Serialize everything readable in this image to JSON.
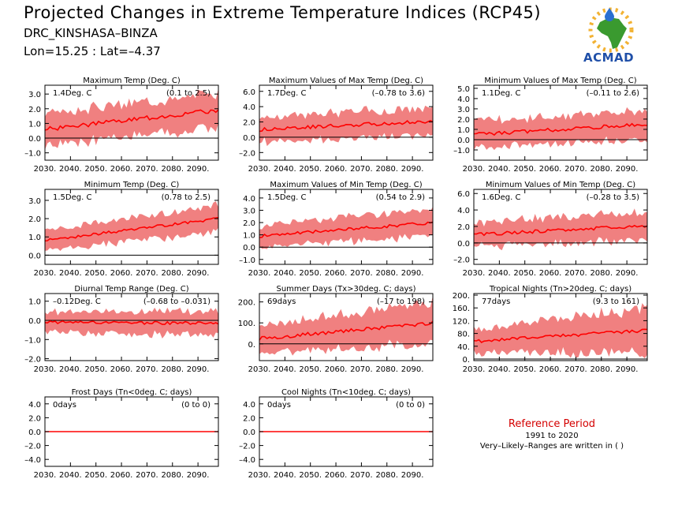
{
  "header": {
    "title": "Projected Changes in Extreme Temperature Indices (RCP45)",
    "station": "DRC_KINSHASA–BINZA",
    "coords": "Lon=15.25 : Lat=–4.37"
  },
  "logo": {
    "text": "ACMAD"
  },
  "reference": {
    "title": "Reference Period",
    "years": "1991 to 2020",
    "note": "Very–Likely–Ranges are written in ( )"
  },
  "colors": {
    "band": "#f08080",
    "line": "#ff0000",
    "zero": "#000000"
  },
  "chart_data": [
    {
      "type": "area",
      "title": "Maximum Temp (Deg. C)",
      "mean_label": "1.4Deg. C",
      "range_label": "(0.1 to 2.5)",
      "x": [
        2030,
        2098
      ],
      "xticks": [
        "2030.",
        "2040.",
        "2050.",
        "2060.",
        "2070.",
        "2080.",
        "2090."
      ],
      "yticks": [
        "3.0",
        "2.0",
        "1.0",
        "0.0",
        "–1.0"
      ],
      "ylim": [
        -1.5,
        3.6
      ],
      "mean": [
        0.6,
        1.9
      ],
      "spread": [
        1.2,
        1.3
      ]
    },
    {
      "type": "area",
      "title": "Maximum Values of Max Temp (Deg. C)",
      "mean_label": "1.7Deg. C",
      "range_label": "(–0.78 to 3.6)",
      "x": [
        2030,
        2098
      ],
      "xticks": [
        "2030.",
        "2040.",
        "2050.",
        "2060.",
        "2070.",
        "2080.",
        "2090."
      ],
      "yticks": [
        "6.0",
        "4.0",
        "2.0",
        "0.0",
        "–2.0"
      ],
      "ylim": [
        -3.0,
        6.8
      ],
      "mean": [
        1.0,
        2.1
      ],
      "spread": [
        1.8,
        2.0
      ]
    },
    {
      "type": "area",
      "title": "Minimum Values of Max Temp (Deg. C)",
      "mean_label": "1.1Deg. C",
      "range_label": "(–0.11 to 2.6)",
      "x": [
        2030,
        2098
      ],
      "xticks": [
        "2030.",
        "2040.",
        "2050.",
        "2060.",
        "2070.",
        "2080.",
        "2090."
      ],
      "yticks": [
        "5.0",
        "4.0",
        "3.0",
        "2.0",
        "1.0",
        "0.0",
        "–1.0"
      ],
      "ylim": [
        -2.0,
        5.3
      ],
      "mean": [
        0.5,
        1.5
      ],
      "spread": [
        1.4,
        1.6
      ]
    },
    {
      "type": "area",
      "title": "Minimum Temp (Deg. C)",
      "mean_label": "1.5Deg. C",
      "range_label": "(0.78 to 2.5)",
      "x": [
        2030,
        2098
      ],
      "xticks": [
        "2030.",
        "2040.",
        "2050.",
        "2060.",
        "2070.",
        "2080.",
        "2090."
      ],
      "yticks": [
        "3.0",
        "2.0",
        "1.0",
        "0.0"
      ],
      "ylim": [
        -0.5,
        3.6
      ],
      "mean": [
        0.8,
        2.0
      ],
      "spread": [
        0.6,
        0.8
      ]
    },
    {
      "type": "area",
      "title": "Maximum Values of Min Temp (Deg. C)",
      "mean_label": "1.5Deg. C",
      "range_label": "(0.54 to 2.9)",
      "x": [
        2030,
        2098
      ],
      "xticks": [
        "2030.",
        "2040.",
        "2050.",
        "2060.",
        "2070.",
        "2080.",
        "2090."
      ],
      "yticks": [
        "4.0",
        "3.0",
        "2.0",
        "1.0",
        "0.0",
        "–1.0"
      ],
      "ylim": [
        -1.4,
        4.7
      ],
      "mean": [
        0.9,
        2.0
      ],
      "spread": [
        1.0,
        1.2
      ]
    },
    {
      "type": "area",
      "title": "Minimum Values of Min Temp (Deg. C)",
      "mean_label": "1.6Deg. C",
      "range_label": "(–0.28 to 3.5)",
      "x": [
        2030,
        2098
      ],
      "xticks": [
        "2030.",
        "2040.",
        "2050.",
        "2060.",
        "2070.",
        "2080.",
        "2090."
      ],
      "yticks": [
        "6.0",
        "4.0",
        "2.0",
        "0.0",
        "–2.0"
      ],
      "ylim": [
        -2.6,
        6.5
      ],
      "mean": [
        1.0,
        2.1
      ],
      "spread": [
        1.6,
        1.9
      ]
    },
    {
      "type": "area",
      "title": "Diurnal Temp Range (Deg. C)",
      "mean_label": "–0.12Deg. C",
      "range_label": "(–0.68 to –0.031)",
      "x": [
        2030,
        2098
      ],
      "xticks": [
        "2030.",
        "2040.",
        "2050.",
        "2060.",
        "2070.",
        "2080.",
        "2090."
      ],
      "yticks": [
        "1.0",
        "0.0",
        "–1.0",
        "–2.0"
      ],
      "ylim": [
        -2.1,
        1.4
      ],
      "mean": [
        -0.1,
        -0.15
      ],
      "spread": [
        0.6,
        0.7
      ]
    },
    {
      "type": "area",
      "title": "Summer Days (Tx>30deg. C; days)",
      "mean_label": "69days",
      "range_label": "(–17 to 198)",
      "x": [
        2030,
        2098
      ],
      "xticks": [
        "2030.",
        "2040.",
        "2050.",
        "2060.",
        "2070.",
        "2080.",
        "2090."
      ],
      "yticks": [
        "200.",
        "100.",
        "0."
      ],
      "ylim": [
        -80,
        240
      ],
      "mean": [
        25,
        100
      ],
      "spread": [
        70,
        110
      ]
    },
    {
      "type": "area",
      "title": "Tropical Nights (Tn>20deg. C; days)",
      "mean_label": "77days",
      "range_label": "(9.3 to 161)",
      "x": [
        2030,
        2098
      ],
      "xticks": [
        "2030.",
        "2040.",
        "2050.",
        "2060.",
        "2070.",
        "2080.",
        "2090."
      ],
      "yticks": [
        "200.",
        "160.",
        "120.",
        "80.",
        "40.",
        "0."
      ],
      "ylim": [
        -5,
        205
      ],
      "mean": [
        55,
        90
      ],
      "spread": [
        40,
        80
      ]
    },
    {
      "type": "area",
      "title": "Frost Days (Tn<0deg. C; days)",
      "mean_label": "0days",
      "range_label": "(0 to 0)",
      "x": [
        2030,
        2098
      ],
      "xticks": [
        "2030.",
        "2040.",
        "2050.",
        "2060.",
        "2070.",
        "2080.",
        "2090."
      ],
      "yticks": [
        "4.0",
        "2.0",
        "0.0",
        "–2.0",
        "–4.0"
      ],
      "ylim": [
        -5,
        5
      ],
      "mean": [
        0,
        0
      ],
      "spread": [
        0,
        0
      ]
    },
    {
      "type": "area",
      "title": "Cool Nights (Tn<10deg. C; days)",
      "mean_label": "0days",
      "range_label": "(0 to 0)",
      "x": [
        2030,
        2098
      ],
      "xticks": [
        "2030.",
        "2040.",
        "2050.",
        "2060.",
        "2070.",
        "2080.",
        "2090."
      ],
      "yticks": [
        "4.0",
        "2.0",
        "0.0",
        "–2.0",
        "–4.0"
      ],
      "ylim": [
        -5,
        5
      ],
      "mean": [
        0,
        0
      ],
      "spread": [
        0,
        0
      ]
    }
  ]
}
